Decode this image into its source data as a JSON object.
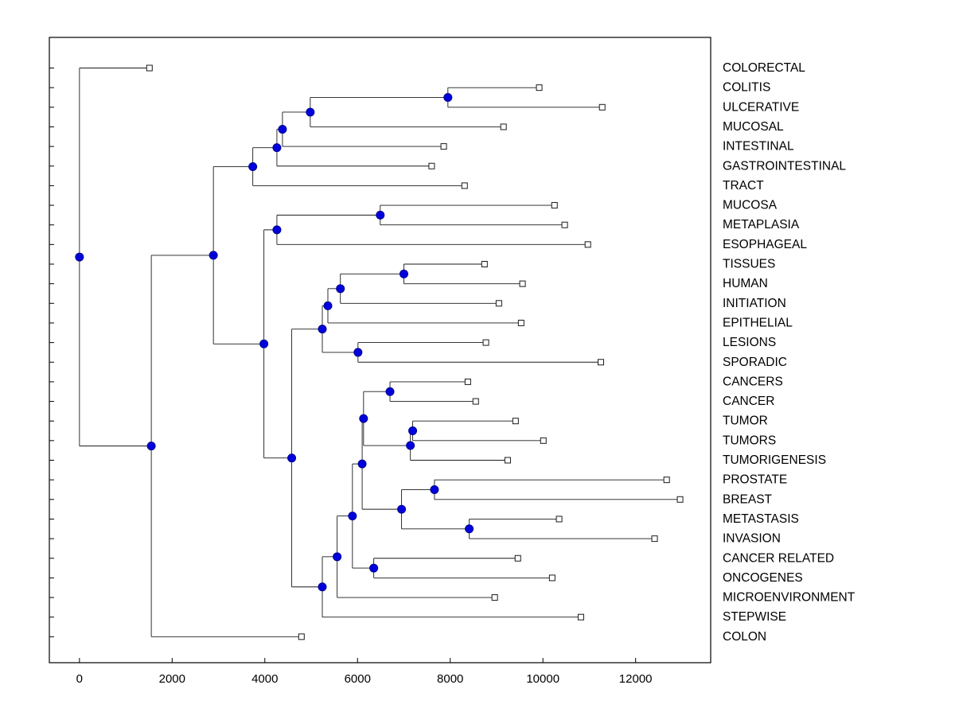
{
  "figure": {
    "background": "#ffffff"
  },
  "chart_data": {
    "type": "dendrogram",
    "orientation": "left-to-right",
    "title": "",
    "xlabel": "",
    "ylabel": "",
    "grid": false,
    "x_ticks": [
      0,
      2000,
      4000,
      6000,
      8000,
      10000,
      12000
    ],
    "x_range": [
      -650,
      13620
    ],
    "leaf_marker": "open-square",
    "node_marker": "filled-circle",
    "colors": {
      "line": "#1a1a1a",
      "node_fill": "#0000dd",
      "node_edge": "#000090",
      "leaf_fill": "#ffffff",
      "leaf_edge": "#1a1a1a",
      "axis": "#000000",
      "text": "#000000"
    },
    "leaves": [
      {
        "label": "COLORECTAL",
        "x": 1510
      },
      {
        "label": "COLITIS",
        "x": 9920
      },
      {
        "label": "ULCERATIVE",
        "x": 11280
      },
      {
        "label": "MUCOSAL",
        "x": 9150
      },
      {
        "label": "INTESTINAL",
        "x": 7860
      },
      {
        "label": "GASTROINTESTINAL",
        "x": 7600
      },
      {
        "label": "TRACT",
        "x": 8310
      },
      {
        "label": "MUCOSA",
        "x": 10250
      },
      {
        "label": "METAPLASIA",
        "x": 10470
      },
      {
        "label": "ESOPHAGEAL",
        "x": 10970
      },
      {
        "label": "TISSUES",
        "x": 8740
      },
      {
        "label": "HUMAN",
        "x": 9560
      },
      {
        "label": "INITIATION",
        "x": 9050
      },
      {
        "label": "EPITHELIAL",
        "x": 9530
      },
      {
        "label": "LESIONS",
        "x": 8770
      },
      {
        "label": "SPORADIC",
        "x": 11250
      },
      {
        "label": "CANCERS",
        "x": 8380
      },
      {
        "label": "CANCER",
        "x": 8550
      },
      {
        "label": "TUMOR",
        "x": 9410
      },
      {
        "label": "TUMORS",
        "x": 10010
      },
      {
        "label": "TUMORIGENESIS",
        "x": 9240
      },
      {
        "label": "PROSTATE",
        "x": 12670
      },
      {
        "label": "BREAST",
        "x": 12960
      },
      {
        "label": "METASTASIS",
        "x": 10350
      },
      {
        "label": "INVASION",
        "x": 12410
      },
      {
        "label": "CANCER RELATED",
        "x": 9460
      },
      {
        "label": "ONCOGENES",
        "x": 10200
      },
      {
        "label": "MICROENVIRONMENT",
        "x": 8960
      },
      {
        "label": "STEPWISE",
        "x": 10820
      },
      {
        "label": "COLON",
        "x": 4790
      }
    ],
    "merges": [
      [
        1,
        2,
        7950
      ],
      [
        30,
        3,
        4980
      ],
      [
        31,
        4,
        4380
      ],
      [
        32,
        5,
        4260
      ],
      [
        33,
        6,
        3740
      ],
      [
        7,
        8,
        6490
      ],
      [
        35,
        9,
        4260
      ],
      [
        10,
        11,
        7000
      ],
      [
        37,
        12,
        5630
      ],
      [
        38,
        13,
        5360
      ],
      [
        14,
        15,
        6010
      ],
      [
        39,
        40,
        5240
      ],
      [
        16,
        17,
        6700
      ],
      [
        18,
        19,
        7190
      ],
      [
        43,
        20,
        7140
      ],
      [
        42,
        44,
        6130
      ],
      [
        21,
        22,
        7660
      ],
      [
        23,
        24,
        8410
      ],
      [
        46,
        47,
        6950
      ],
      [
        45,
        48,
        6100
      ],
      [
        25,
        26,
        6350
      ],
      [
        49,
        50,
        5890
      ],
      [
        51,
        27,
        5560
      ],
      [
        52,
        28,
        5240
      ],
      [
        41,
        53,
        4580
      ],
      [
        36,
        54,
        3980
      ],
      [
        34,
        55,
        2890
      ],
      [
        56,
        29,
        1550
      ],
      [
        0,
        57,
        0
      ]
    ]
  }
}
